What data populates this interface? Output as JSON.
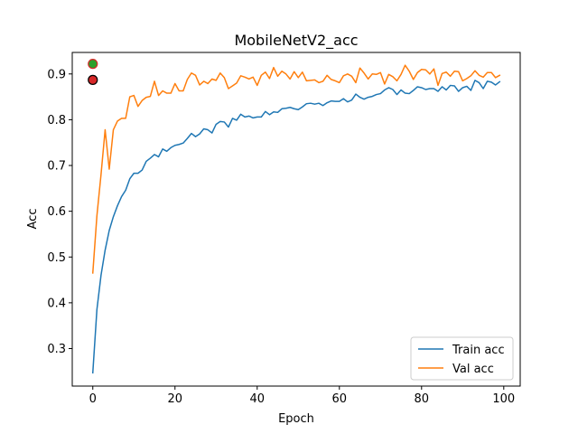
{
  "chart_data": {
    "type": "line",
    "title": "MobileNetV2_acc",
    "xlabel": "Epoch",
    "ylabel": "Acc",
    "xlim": [
      -5,
      104
    ],
    "ylim": [
      0.218,
      0.947
    ],
    "xticks": [
      0,
      20,
      40,
      60,
      80,
      100
    ],
    "yticks": [
      0.3,
      0.4,
      0.5,
      0.6,
      0.7,
      0.8,
      0.9
    ],
    "grid": false,
    "legend_position": "bottom-right",
    "series": [
      {
        "name": "Train acc",
        "color": "#1f77b4",
        "x": [
          0,
          1,
          2,
          3,
          4,
          5,
          6,
          7,
          8,
          9,
          10,
          11,
          12,
          13,
          14,
          15,
          16,
          17,
          18,
          19,
          20,
          21,
          22,
          23,
          24,
          25,
          26,
          27,
          28,
          29,
          30,
          31,
          32,
          33,
          34,
          35,
          36,
          37,
          38,
          39,
          40,
          41,
          42,
          43,
          44,
          45,
          46,
          47,
          48,
          49,
          50,
          51,
          52,
          53,
          54,
          55,
          56,
          57,
          58,
          59,
          60,
          61,
          62,
          63,
          64,
          65,
          66,
          67,
          68,
          69,
          70,
          71,
          72,
          73,
          74,
          75,
          76,
          77,
          78,
          79,
          80,
          81,
          82,
          83,
          84,
          85,
          86,
          87,
          88,
          89,
          90,
          91,
          92,
          93,
          94,
          95,
          96,
          97,
          98,
          99
        ],
        "values": [
          0.247,
          0.385,
          0.46,
          0.515,
          0.558,
          0.588,
          0.612,
          0.632,
          0.646,
          0.671,
          0.683,
          0.683,
          0.69,
          0.709,
          0.716,
          0.724,
          0.719,
          0.736,
          0.731,
          0.739,
          0.744,
          0.746,
          0.749,
          0.759,
          0.77,
          0.763,
          0.769,
          0.78,
          0.778,
          0.771,
          0.79,
          0.796,
          0.795,
          0.784,
          0.803,
          0.799,
          0.812,
          0.806,
          0.808,
          0.804,
          0.806,
          0.806,
          0.818,
          0.811,
          0.817,
          0.816,
          0.824,
          0.825,
          0.827,
          0.824,
          0.822,
          0.828,
          0.835,
          0.836,
          0.834,
          0.836,
          0.831,
          0.837,
          0.841,
          0.84,
          0.84,
          0.846,
          0.839,
          0.843,
          0.856,
          0.849,
          0.845,
          0.849,
          0.851,
          0.855,
          0.857,
          0.865,
          0.87,
          0.866,
          0.855,
          0.865,
          0.858,
          0.857,
          0.864,
          0.872,
          0.87,
          0.866,
          0.868,
          0.868,
          0.862,
          0.872,
          0.865,
          0.875,
          0.874,
          0.862,
          0.87,
          0.873,
          0.864,
          0.886,
          0.881,
          0.868,
          0.884,
          0.882,
          0.876,
          0.883
        ]
      },
      {
        "name": "Val acc",
        "color": "#ff7f0e",
        "x": [
          0,
          1,
          2,
          3,
          4,
          5,
          6,
          7,
          8,
          9,
          10,
          11,
          12,
          13,
          14,
          15,
          16,
          17,
          18,
          19,
          20,
          21,
          22,
          23,
          24,
          25,
          26,
          27,
          28,
          29,
          30,
          31,
          32,
          33,
          34,
          35,
          36,
          37,
          38,
          39,
          40,
          41,
          42,
          43,
          44,
          45,
          46,
          47,
          48,
          49,
          50,
          51,
          52,
          53,
          54,
          55,
          56,
          57,
          58,
          59,
          60,
          61,
          62,
          63,
          64,
          65,
          66,
          67,
          68,
          69,
          70,
          71,
          72,
          73,
          74,
          75,
          76,
          77,
          78,
          79,
          80,
          81,
          82,
          83,
          84,
          85,
          86,
          87,
          88,
          89,
          90,
          91,
          92,
          93,
          94,
          95,
          96,
          97,
          98,
          99
        ],
        "values": [
          0.465,
          0.59,
          0.68,
          0.778,
          0.692,
          0.778,
          0.797,
          0.803,
          0.803,
          0.85,
          0.853,
          0.829,
          0.842,
          0.849,
          0.851,
          0.884,
          0.853,
          0.863,
          0.858,
          0.858,
          0.879,
          0.863,
          0.863,
          0.888,
          0.902,
          0.897,
          0.876,
          0.884,
          0.879,
          0.889,
          0.886,
          0.902,
          0.892,
          0.868,
          0.874,
          0.88,
          0.896,
          0.893,
          0.889,
          0.893,
          0.875,
          0.897,
          0.904,
          0.89,
          0.914,
          0.895,
          0.906,
          0.9,
          0.889,
          0.905,
          0.892,
          0.904,
          0.885,
          0.886,
          0.887,
          0.881,
          0.884,
          0.897,
          0.888,
          0.885,
          0.881,
          0.896,
          0.9,
          0.895,
          0.881,
          0.913,
          0.902,
          0.889,
          0.9,
          0.899,
          0.903,
          0.878,
          0.899,
          0.894,
          0.885,
          0.899,
          0.919,
          0.906,
          0.888,
          0.903,
          0.91,
          0.909,
          0.9,
          0.911,
          0.875,
          0.901,
          0.904,
          0.895,
          0.906,
          0.905,
          0.885,
          0.89,
          0.896,
          0.907,
          0.897,
          0.893,
          0.903,
          0.903,
          0.892,
          0.897
        ]
      }
    ],
    "markers": [
      {
        "x": 0,
        "y": 0.922,
        "fill": "#2ca02c",
        "edge": "#d62728"
      },
      {
        "x": 0,
        "y": 0.887,
        "fill": "#d62728",
        "edge": "#000000"
      }
    ]
  }
}
